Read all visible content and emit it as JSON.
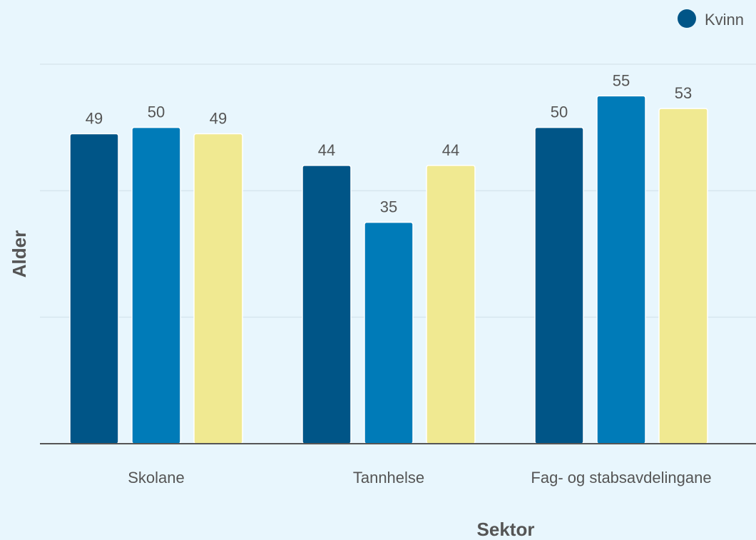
{
  "chart_data": {
    "type": "bar",
    "xlabel": "Sektor",
    "ylabel": "Alder",
    "categories": [
      "Skolane",
      "Tannhelse",
      "Fag- og stabsavdelingane"
    ],
    "series": [
      {
        "name": "Kvinn",
        "color": "#005587",
        "values": [
          49,
          44,
          50
        ]
      },
      {
        "color": "#007bb8",
        "values": [
          50,
          35,
          55
        ]
      },
      {
        "color": "#f0e991",
        "values": [
          49,
          44,
          53
        ]
      }
    ],
    "ylim": [
      0,
      60
    ],
    "grid": true,
    "legend_position": "top-right"
  }
}
